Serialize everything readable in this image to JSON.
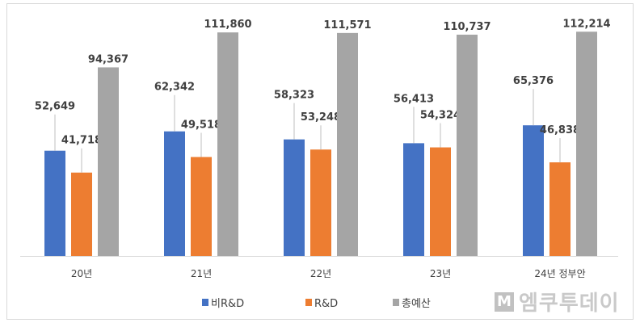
{
  "chart_data": {
    "type": "bar",
    "categories": [
      "20년",
      "21년",
      "22년",
      "23년",
      "24년 정부안"
    ],
    "series": [
      {
        "name": "비R&D",
        "color": "#4472C4",
        "values": [
          52649,
          62342,
          58323,
          56413,
          65376
        ],
        "labels": [
          "52,649",
          "62,342",
          "58,323",
          "56,413",
          "65,376"
        ]
      },
      {
        "name": "R&D",
        "color": "#ED7D31",
        "values": [
          41718,
          49518,
          53248,
          54324,
          46838
        ],
        "labels": [
          "41,718",
          "49,518",
          "53,248",
          "54,324",
          "46,838"
        ]
      },
      {
        "name": "총예산",
        "color": "#A5A5A5",
        "values": [
          94367,
          111860,
          111571,
          110737,
          112214
        ],
        "labels": [
          "94,367",
          "111,860",
          "111,571",
          "110,737",
          "112,214"
        ]
      }
    ],
    "ylim": [
      0,
      120000
    ],
    "grid": false,
    "legend": "bottom"
  },
  "watermark": {
    "text": "엠쿠투데이",
    "mark": "M"
  }
}
